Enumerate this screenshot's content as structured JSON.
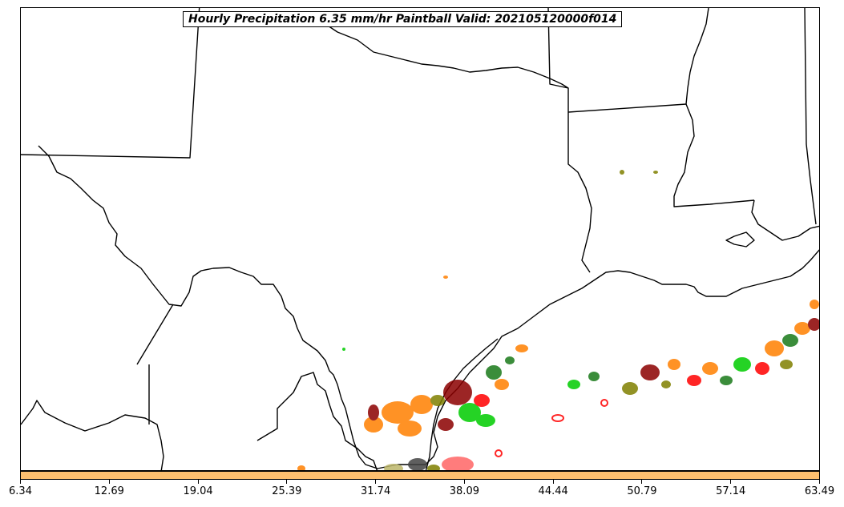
{
  "title": "Hourly Precipitation 6.35 mm/hr Paintball Valid: 202105120000f014",
  "colorbar": {
    "color": "#fdbf6f",
    "ticks": [
      "6.34",
      "12.69",
      "19.04",
      "25.39",
      "31.74",
      "38.09",
      "44.44",
      "50.79",
      "57.14",
      "63.49"
    ]
  },
  "colors": {
    "orange": "#ff7f00",
    "red": "#ff0000",
    "dark_red": "#8b0000",
    "green": "#00cc00",
    "dark_green": "#1a7a1a",
    "olive": "#808000",
    "khaki": "#bdb76b",
    "gray": "#444444",
    "pink": "#ff6666"
  }
}
